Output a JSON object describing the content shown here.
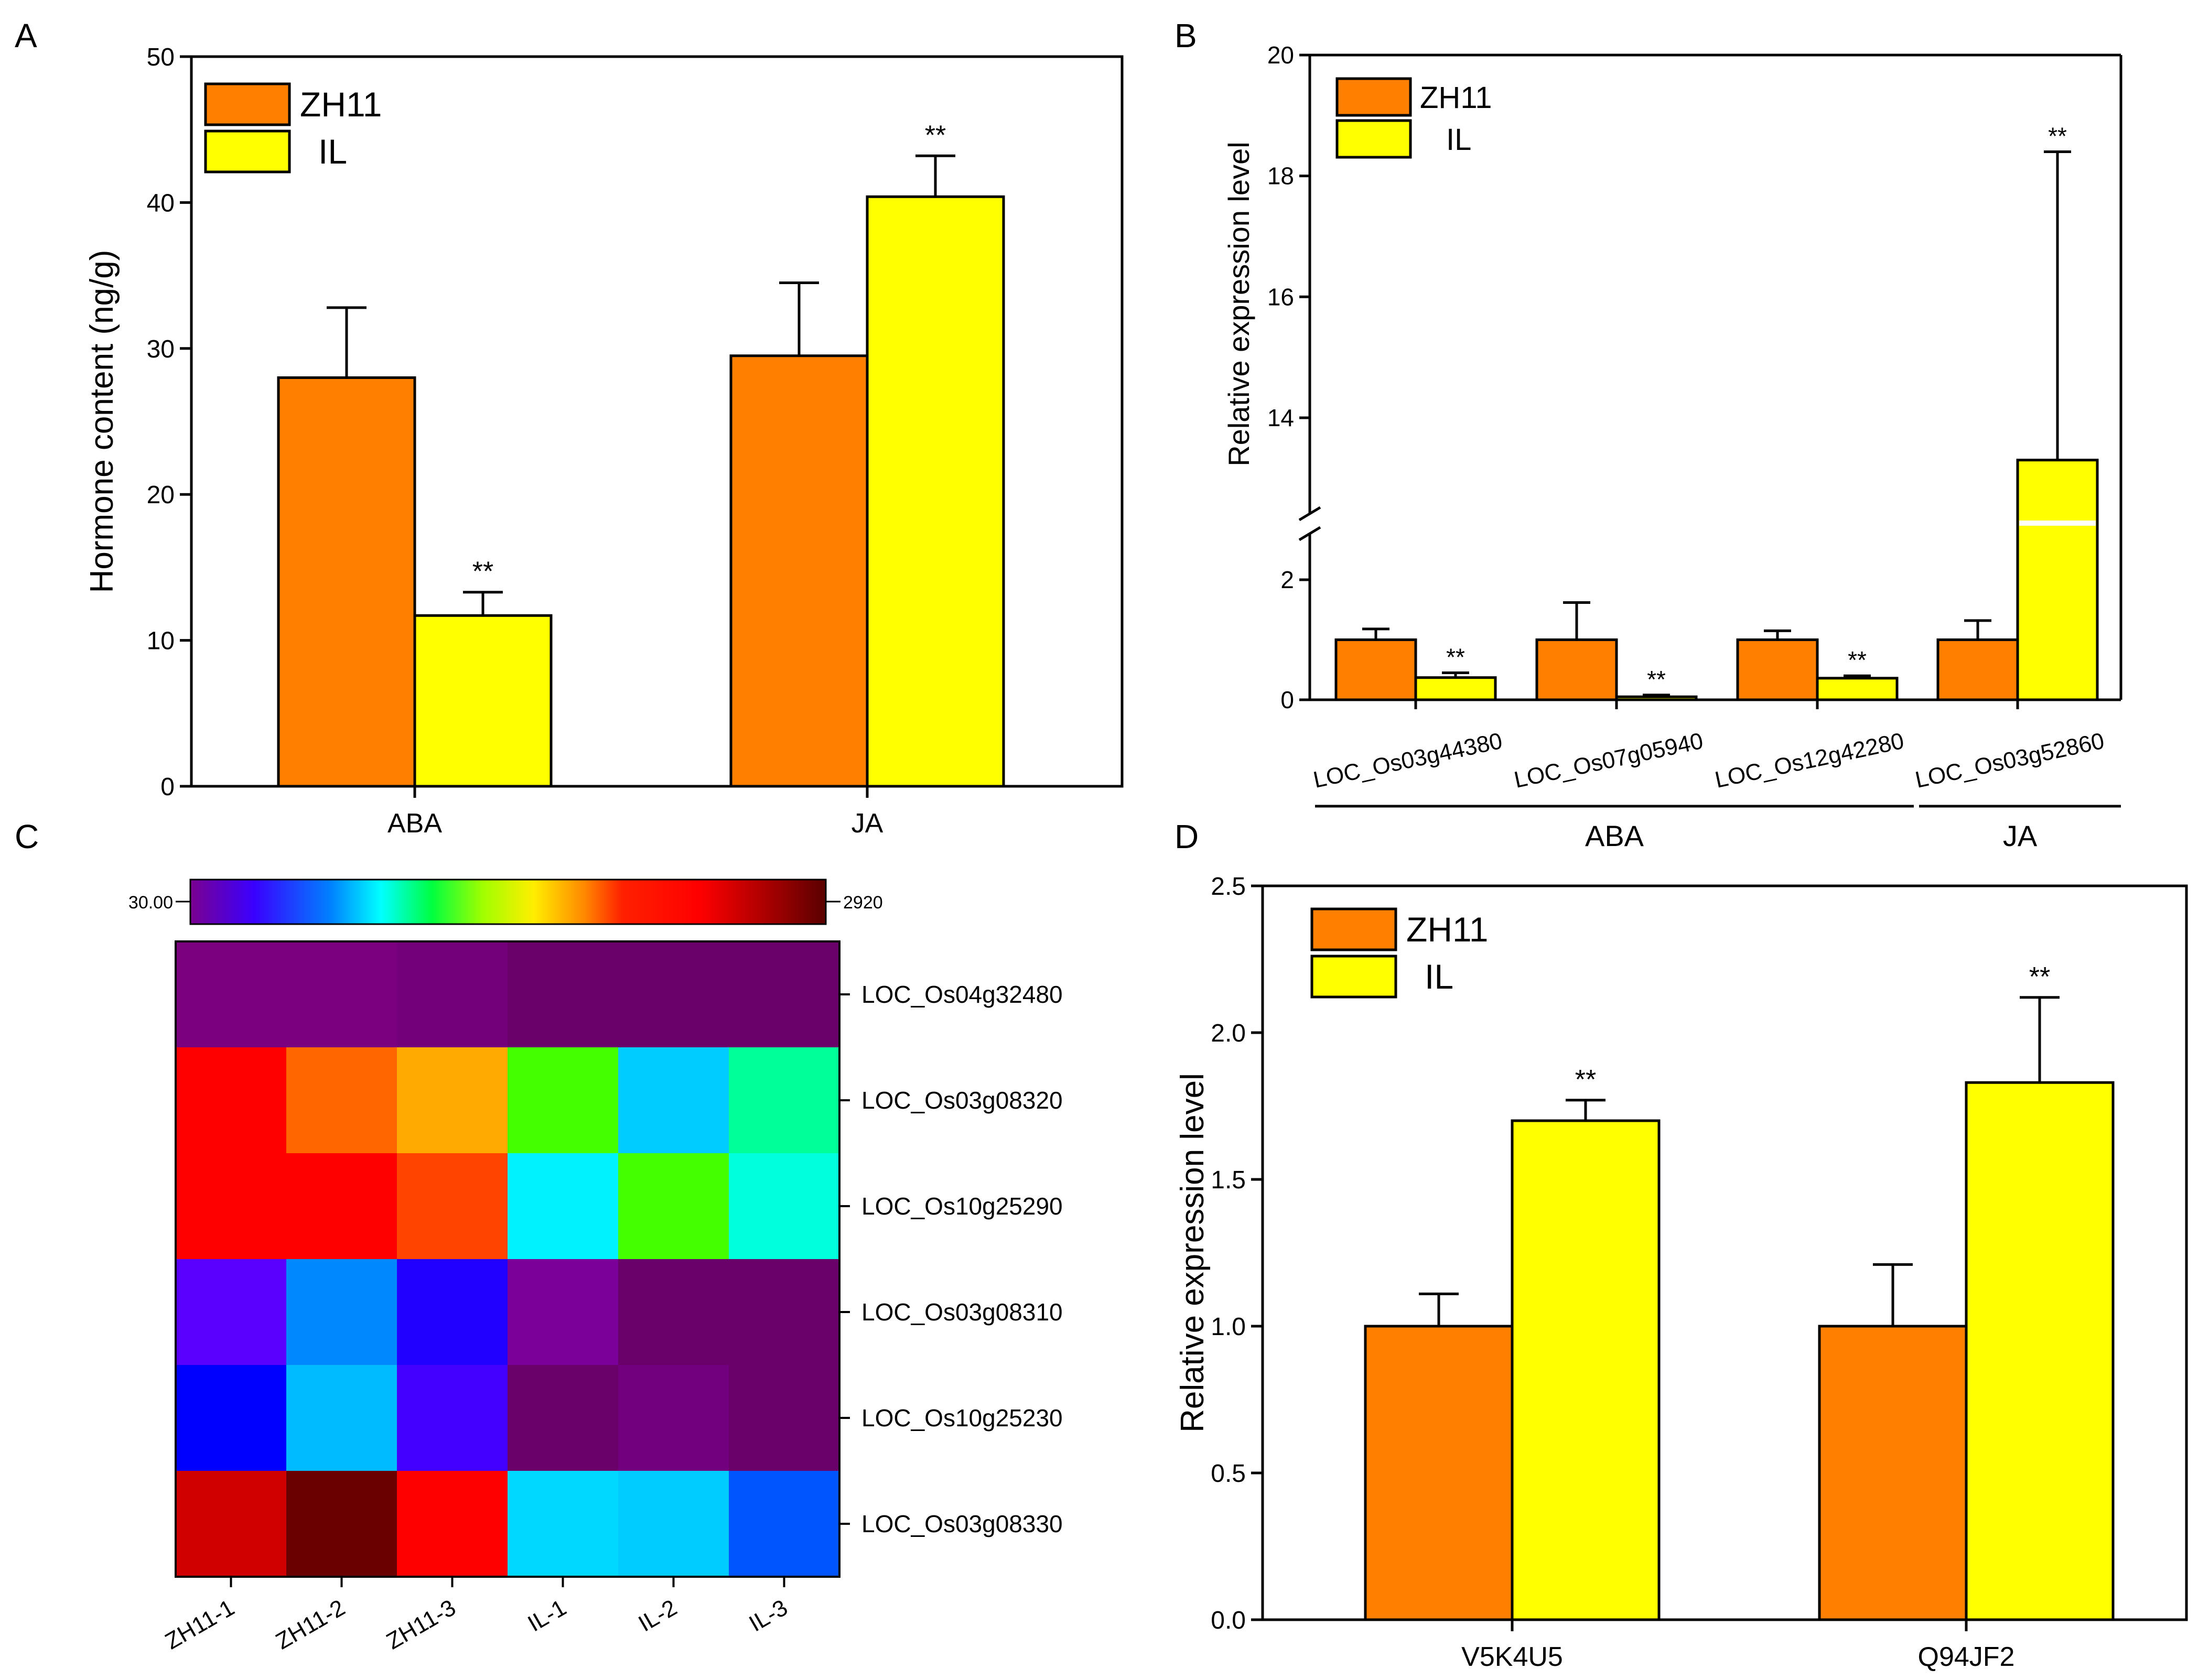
{
  "panel_labels": {
    "a": "A",
    "b": "B",
    "c": "C",
    "d": "D"
  },
  "colors": {
    "zh11": "#FF8000",
    "il": "#FFFF00",
    "frame": "#000000"
  },
  "chart_data": [
    {
      "id": "A",
      "type": "bar",
      "ylabel": "Hormone content (ng/g)",
      "ylim": [
        0,
        50
      ],
      "yticks": [
        "0",
        "10",
        "20",
        "30",
        "40",
        "50"
      ],
      "categories": [
        "ABA",
        "JA"
      ],
      "series": [
        {
          "name": "ZH11",
          "values": [
            28.0,
            29.5
          ],
          "errors": [
            4.8,
            5.0
          ],
          "sig": [
            "",
            ""
          ]
        },
        {
          "name": "IL",
          "values": [
            11.7,
            40.4
          ],
          "errors": [
            1.6,
            2.8
          ],
          "sig": [
            "**",
            "**"
          ]
        }
      ],
      "legend": [
        "ZH11",
        "IL"
      ],
      "legend_position": "top-left"
    },
    {
      "id": "B",
      "type": "bar",
      "ylabel": "Relative expression level",
      "axis_break": true,
      "ylim_lower": [
        0,
        2.9
      ],
      "ylim_upper": [
        12.3,
        20
      ],
      "yticks_lower": [
        "0",
        "2"
      ],
      "yticks_upper": [
        "14",
        "16",
        "18",
        "20"
      ],
      "categories": [
        "LOC_Os03g44380",
        "LOC_Os07g05940",
        "LOC_Os12g42280",
        "LOC_Os03g52860"
      ],
      "groups": [
        {
          "label": "ABA",
          "span": [
            0,
            2
          ]
        },
        {
          "label": "JA",
          "span": [
            3,
            3
          ]
        }
      ],
      "series": [
        {
          "name": "ZH11",
          "values": [
            1.0,
            1.0,
            1.0,
            1.0
          ],
          "errors": [
            0.18,
            0.62,
            0.15,
            0.32
          ],
          "sig": [
            "",
            "",
            "",
            ""
          ]
        },
        {
          "name": "IL",
          "values": [
            0.37,
            0.05,
            0.36,
            13.3
          ],
          "errors": [
            0.08,
            0.03,
            0.04,
            5.1
          ],
          "sig": [
            "**",
            "**",
            "**",
            "**"
          ]
        }
      ],
      "legend": [
        "ZH11",
        "IL"
      ],
      "legend_position": "top-left"
    },
    {
      "id": "C",
      "type": "heatmap",
      "color_scale": {
        "min_label": "30.00",
        "max_label": "2920"
      },
      "columns": [
        "ZH11-1",
        "ZH11-2",
        "ZH11-3",
        "IL-1",
        "IL-2",
        "IL-3"
      ],
      "rows": [
        "LOC_Os04g32480",
        "LOC_Os03g08320",
        "LOC_Os10g25290",
        "LOC_Os03g08310",
        "LOC_Os10g25230",
        "LOC_Os03g08330"
      ],
      "cell_colors": [
        [
          "#7A0080",
          "#7A0080",
          "#73007A",
          "#6A006A",
          "#6A006A",
          "#6A006A"
        ],
        [
          "#FF0000",
          "#FF6600",
          "#FFAA00",
          "#44FF00",
          "#00CCFF",
          "#00FF99"
        ],
        [
          "#FF0000",
          "#FF0000",
          "#FF4400",
          "#00F2FF",
          "#44FF00",
          "#00FFDD"
        ],
        [
          "#5A00FF",
          "#0088FF",
          "#2200FF",
          "#7A0099",
          "#6A006A",
          "#6A006A"
        ],
        [
          "#0000FF",
          "#00BBFF",
          "#4400FF",
          "#6A006A",
          "#72007E",
          "#6A006A"
        ],
        [
          "#D00000",
          "#6A0000",
          "#FF0000",
          "#00D8FF",
          "#00CCFF",
          "#0055FF"
        ]
      ]
    },
    {
      "id": "D",
      "type": "bar",
      "ylabel": "Relative expression level",
      "ylim": [
        0,
        2.5
      ],
      "yticks": [
        "0.0",
        "0.5",
        "1.0",
        "1.5",
        "2.0",
        "2.5"
      ],
      "categories": [
        "V5K4U5",
        "Q94JF2"
      ],
      "series": [
        {
          "name": "ZH11",
          "values": [
            1.0,
            1.0
          ],
          "errors": [
            0.11,
            0.21
          ],
          "sig": [
            "",
            ""
          ]
        },
        {
          "name": "IL",
          "values": [
            1.7,
            1.83
          ],
          "errors": [
            0.07,
            0.29
          ],
          "sig": [
            "**",
            "**"
          ]
        }
      ],
      "legend": [
        "ZH11",
        "IL"
      ],
      "legend_position": "top-left"
    }
  ]
}
